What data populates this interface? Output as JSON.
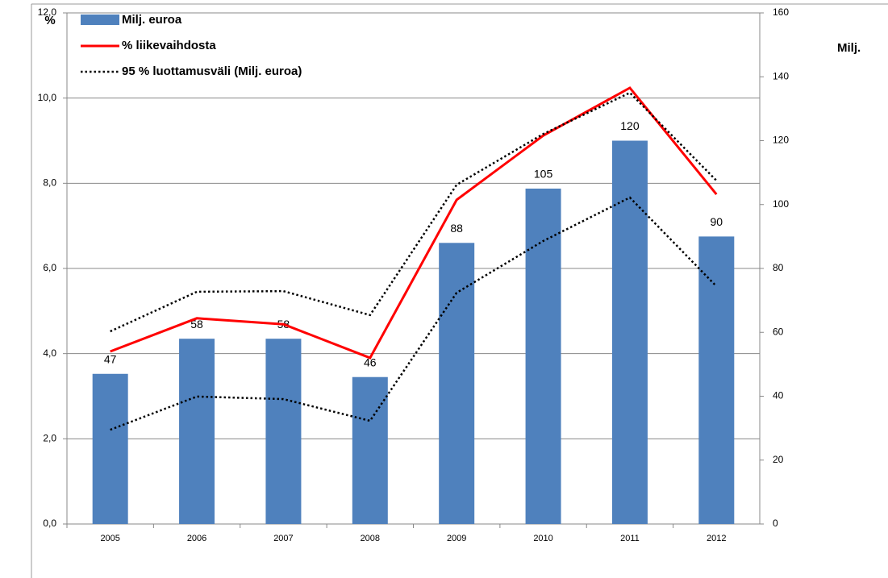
{
  "chart_data": {
    "type": "bar_line",
    "y_label": "%",
    "y2_label": "Milj.",
    "categories": [
      "2005",
      "2006",
      "2007",
      "2008",
      "2009",
      "2010",
      "2011",
      "2012"
    ],
    "ylim": [
      0,
      12
    ],
    "yticks": [
      {
        "value": 0,
        "label": "0,0"
      },
      {
        "value": 2,
        "label": "2,0"
      },
      {
        "value": 4,
        "label": "4,0"
      },
      {
        "value": 6,
        "label": "6,0"
      },
      {
        "value": 8,
        "label": "8,0"
      },
      {
        "value": 10,
        "label": "10,0"
      },
      {
        "value": 12,
        "label": "12,0"
      }
    ],
    "y2lim": [
      0,
      160
    ],
    "y2ticks": [
      0,
      20,
      40,
      60,
      80,
      100,
      120,
      140,
      160
    ],
    "grid": true,
    "series": [
      {
        "name": "Milj. euroa",
        "kind": "bar",
        "color": "#4f81bd",
        "axis": "y2",
        "values": [
          47,
          58,
          58,
          46,
          88,
          105,
          120,
          90
        ]
      },
      {
        "name": "% liikevaihdosta",
        "kind": "line",
        "color": "#ff0000",
        "values": [
          4.05,
          4.83,
          4.69,
          3.9,
          7.61,
          9.12,
          10.24,
          7.74
        ]
      },
      {
        "name": "95 % luottamusväli (Milj. euroa)",
        "kind": "interval",
        "color": "#000000",
        "axis": "y2",
        "values": [
          60.3,
          72.7,
          72.9,
          65.4,
          106.2,
          122.1,
          135.0,
          107.5
        ],
        "lower_values": [
          29.5,
          39.9,
          39.1,
          32.3,
          72.4,
          88.6,
          102.2,
          74.4
        ]
      }
    ]
  }
}
